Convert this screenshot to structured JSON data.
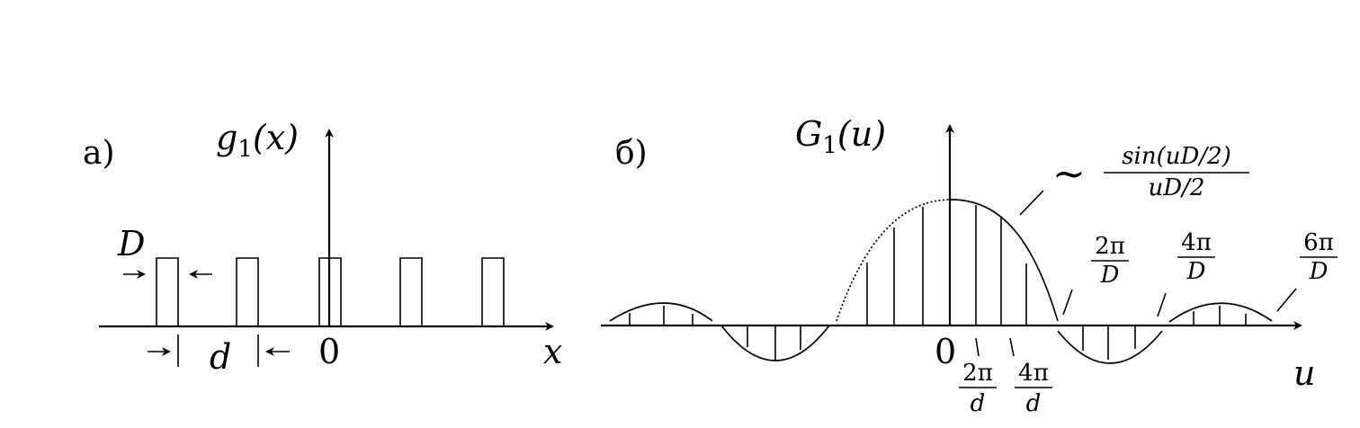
{
  "panel_a": {
    "label": "а)",
    "func_name": "g",
    "func_sub": "1",
    "func_arg": "(x)",
    "width_label": "D",
    "period_label": "d",
    "origin_label": "0",
    "axis_label": "x"
  },
  "panel_b": {
    "label": "б)",
    "func_name": "G",
    "func_sub": "1",
    "func_arg": "(u)",
    "envelope_tilde": "~",
    "envelope_num": "sin(uD/2)",
    "envelope_den": "uD/2",
    "zero_marks": [
      {
        "num": "2π",
        "den": "D"
      },
      {
        "num": "4π",
        "den": "D"
      },
      {
        "num": "6π",
        "den": "D"
      }
    ],
    "spacing_marks": [
      {
        "num": "2π",
        "den": "d"
      },
      {
        "num": "4π",
        "den": "d"
      }
    ],
    "origin_label": "0",
    "axis_label": "u"
  }
}
